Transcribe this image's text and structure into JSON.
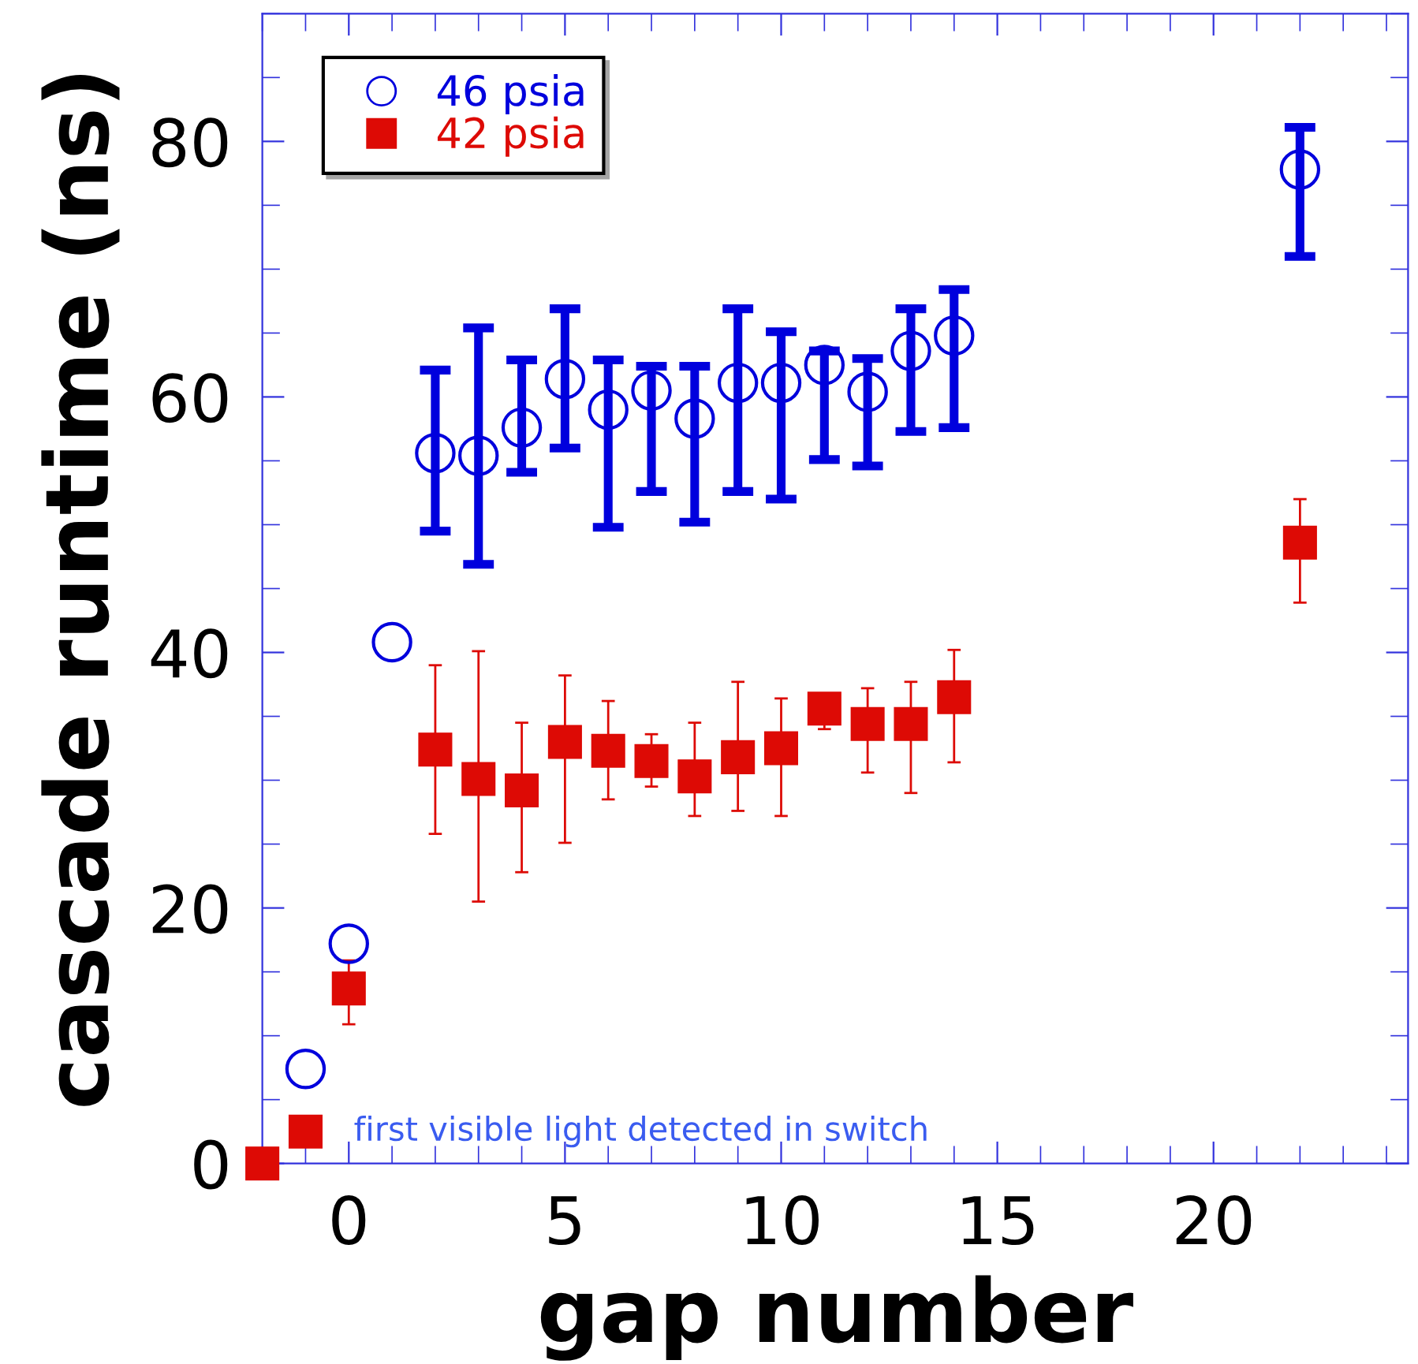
{
  "chart_data": {
    "type": "scatter",
    "xlabel": "gap number",
    "ylabel": "cascade runtime (ns)",
    "xlim": [
      -2,
      24.5
    ],
    "ylim": [
      0,
      90
    ],
    "xticks": [
      0,
      5,
      10,
      15,
      20
    ],
    "yticks": [
      0,
      20,
      40,
      60,
      80
    ],
    "grid": false,
    "legend": "top left",
    "annotations": [
      {
        "text": "first visible light detected in switch",
        "x": -1,
        "y": 2.5
      }
    ],
    "series": [
      {
        "name": "46 psia",
        "color": "#0000dd",
        "marker": "circle",
        "x": [
          -1,
          0,
          1,
          2,
          3,
          4,
          5,
          6,
          7,
          8,
          9,
          10,
          11,
          12,
          13,
          14,
          22
        ],
        "values": [
          7.4,
          17.2,
          40.8,
          55.6,
          55.4,
          57.6,
          61.4,
          59.0,
          60.5,
          58.3,
          61.1,
          61.1,
          62.5,
          60.4,
          63.6,
          64.8,
          77.8
        ],
        "errors": [
          null,
          null,
          null,
          [
            49.5,
            62.1
          ],
          [
            46.9,
            65.4
          ],
          [
            54.1,
            62.9
          ],
          [
            56.0,
            66.9
          ],
          [
            49.8,
            62.9
          ],
          [
            52.6,
            62.4
          ],
          [
            50.2,
            62.4
          ],
          [
            52.6,
            66.9
          ],
          [
            52.0,
            65.1
          ],
          [
            55.1,
            63.6
          ],
          [
            54.6,
            63.0
          ],
          [
            57.3,
            66.9
          ],
          [
            57.6,
            68.4
          ],
          [
            71.0,
            81.1
          ]
        ]
      },
      {
        "name": "42 psia",
        "color": "#dd0a05",
        "marker": "square",
        "x": [
          -2,
          -1,
          0,
          2,
          3,
          4,
          5,
          6,
          7,
          8,
          9,
          10,
          11,
          12,
          13,
          14,
          22
        ],
        "values": [
          0,
          2.5,
          13.7,
          32.4,
          30.1,
          29.2,
          33.0,
          32.3,
          31.5,
          30.3,
          31.8,
          32.5,
          35.6,
          34.4,
          34.4,
          36.5,
          48.6
        ],
        "errors": [
          null,
          null,
          [
            10.9,
            15.9
          ],
          [
            25.8,
            39.0
          ],
          [
            20.5,
            40.1
          ],
          [
            22.8,
            34.5
          ],
          [
            25.1,
            38.2
          ],
          [
            28.5,
            36.2
          ],
          [
            29.5,
            33.6
          ],
          [
            27.2,
            34.5
          ],
          [
            27.6,
            37.7
          ],
          [
            27.2,
            36.4
          ],
          [
            34.0,
            36.6
          ],
          [
            30.6,
            37.2
          ],
          [
            29.0,
            37.7
          ],
          [
            31.4,
            40.2
          ],
          [
            43.9,
            52.0
          ]
        ]
      }
    ]
  }
}
